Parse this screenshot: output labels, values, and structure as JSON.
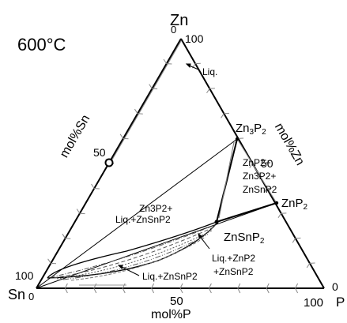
{
  "diagram": {
    "temperature": "600°C",
    "vertices": {
      "top": "Zn",
      "bottom_left": "Sn",
      "bottom_right": "P"
    },
    "axes": {
      "left": {
        "title": "mol%Sn",
        "ticks": [
          "0",
          "50",
          "100"
        ]
      },
      "right": {
        "title": "mol%Zn",
        "ticks": [
          "100",
          "50",
          "0"
        ]
      },
      "bottom": {
        "title": "mol%P",
        "ticks": [
          "0",
          "50",
          "100"
        ]
      }
    },
    "phases": {
      "zn3p2": {
        "base": "Zn",
        "sub1": "3",
        "mid": "P",
        "sub2": "2"
      },
      "znp2": {
        "base": "ZnP",
        "sub": "2"
      },
      "znsnp2": {
        "base": "ZnSnP",
        "sub": "2"
      }
    },
    "regions": {
      "liq": "Liq.",
      "zn3p2_liq_znsnp2": {
        "line1": "Zn3P2+",
        "line2": "Liq.+ZnSnP2"
      },
      "znp2_zn3p2_znsnp2": {
        "line1": "ZnP2+",
        "line2": "Zn3P2+",
        "line3": "ZnSnP2"
      },
      "liq_znp2_znsnp2": {
        "line1": "Liq.+ZnP2",
        "line2": "+ZnSnP2"
      },
      "liq_znsnp2": "Liq.+ZnSnP2"
    }
  }
}
